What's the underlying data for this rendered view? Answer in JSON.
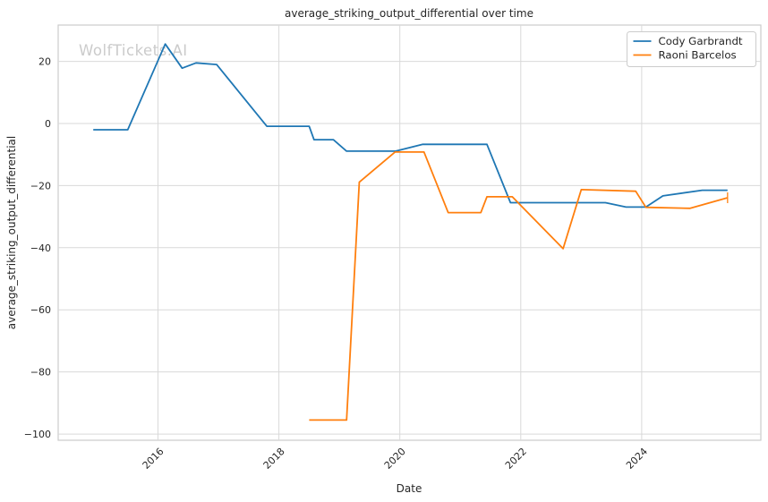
{
  "watermark": "WolfTickets.AI",
  "chart_data": {
    "type": "line",
    "title": "average_striking_output_differential over time",
    "xlabel": "Date",
    "ylabel": "average_striking_output_differential",
    "xlim": [
      2014.35,
      2025.97
    ],
    "ylim": [
      -102,
      31.7
    ],
    "x_ticks": [
      2016,
      2018,
      2020,
      2022,
      2024
    ],
    "y_ticks": [
      20,
      0,
      -20,
      -40,
      -60,
      -80,
      -100
    ],
    "grid": true,
    "legend_position": "upper right",
    "series": [
      {
        "name": "Cody Garbrandt",
        "color": "#1f77b4",
        "end_marker": "none",
        "points": [
          [
            2014.93,
            -2.0
          ],
          [
            2015.5,
            -2.0
          ],
          [
            2016.12,
            25.6
          ],
          [
            2016.4,
            17.8
          ],
          [
            2016.63,
            19.5
          ],
          [
            2016.97,
            19.0
          ],
          [
            2017.8,
            -0.9
          ],
          [
            2018.5,
            -0.9
          ],
          [
            2018.58,
            -5.2
          ],
          [
            2018.9,
            -5.2
          ],
          [
            2019.12,
            -8.9
          ],
          [
            2019.93,
            -8.9
          ],
          [
            2020.38,
            -6.7
          ],
          [
            2021.44,
            -6.7
          ],
          [
            2021.83,
            -25.5
          ],
          [
            2023.4,
            -25.5
          ],
          [
            2023.74,
            -26.9
          ],
          [
            2024.07,
            -26.9
          ],
          [
            2024.35,
            -23.3
          ],
          [
            2025.0,
            -21.5
          ],
          [
            2025.42,
            -21.5
          ]
        ]
      },
      {
        "name": "Raoni Barcelos",
        "color": "#ff7f0e",
        "end_marker": "vertical-tick",
        "points": [
          [
            2018.5,
            -95.5
          ],
          [
            2019.12,
            -95.5
          ],
          [
            2019.33,
            -18.9
          ],
          [
            2019.92,
            -9.2
          ],
          [
            2020.4,
            -9.2
          ],
          [
            2020.8,
            -28.7
          ],
          [
            2021.34,
            -28.7
          ],
          [
            2021.44,
            -23.6
          ],
          [
            2021.86,
            -23.6
          ],
          [
            2022.7,
            -40.3
          ],
          [
            2023.0,
            -21.3
          ],
          [
            2023.9,
            -21.8
          ],
          [
            2024.07,
            -27.0
          ],
          [
            2024.8,
            -27.3
          ],
          [
            2025.42,
            -23.9
          ]
        ]
      }
    ]
  }
}
